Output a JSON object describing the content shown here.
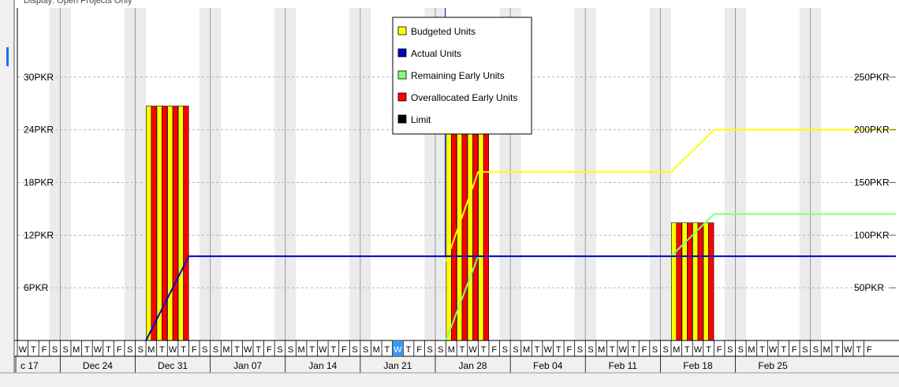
{
  "header": {
    "display_filter": "Display: Open Projects Only"
  },
  "chart_data": {
    "type": "bar",
    "left_axis": {
      "ticks": [
        "6PKR",
        "12PKR",
        "18PKR",
        "24PKR",
        "30PKR"
      ],
      "values": [
        6,
        12,
        18,
        24,
        30
      ],
      "ylim": [
        0,
        34.5
      ]
    },
    "right_axis": {
      "ticks": [
        "50PKR",
        "100PKR",
        "150PKR",
        "200PKR",
        "250PKR"
      ],
      "values": [
        50,
        100,
        150,
        200,
        250
      ],
      "ylim": [
        0,
        287.5
      ]
    },
    "week_labels": [
      "c 17",
      "Dec 24",
      "Dec 31",
      "Jan 07",
      "Jan 14",
      "Jan 21",
      "Jan 28",
      "Feb 04",
      "Feb 11",
      "Feb 18",
      "Feb 25"
    ],
    "day_letters": [
      "W",
      "T",
      "F",
      "S",
      "S",
      "M",
      "T",
      "W",
      "T",
      "F",
      "S",
      "S",
      "M",
      "T",
      "W",
      "T",
      "F",
      "S",
      "S",
      "M",
      "T",
      "W",
      "T",
      "F",
      "S",
      "S",
      "M",
      "T",
      "W",
      "T",
      "F",
      "S",
      "S",
      "M",
      "T",
      "W",
      "T",
      "F",
      "S",
      "S",
      "M",
      "T",
      "W",
      "T",
      "F",
      "S",
      "S",
      "M",
      "T",
      "W",
      "T",
      "F",
      "S",
      "S",
      "M",
      "T",
      "W",
      "T",
      "F",
      "S",
      "S",
      "M",
      "T",
      "W",
      "T",
      "F",
      "S",
      "S",
      "M",
      "T",
      "W",
      "T",
      "F",
      "S",
      "S",
      "M",
      "T",
      "W",
      "T",
      "F"
    ],
    "selected_day_index": 35,
    "legend": [
      {
        "label": "Budgeted Units",
        "color": "#ffff00"
      },
      {
        "label": "Actual Units",
        "color": "#0000cc"
      },
      {
        "label": "Remaining Early Units",
        "color": "#80ff80"
      },
      {
        "label": "Overallocated Early Units",
        "color": "#ff0000"
      },
      {
        "label": "Limit",
        "color": "#000000"
      }
    ],
    "bar_groups": [
      {
        "days": [
          12,
          13,
          14,
          15
        ],
        "value": 26.7
      },
      {
        "days": [
          40,
          41,
          42,
          43
        ],
        "value": 26.7
      },
      {
        "days": [
          61,
          62,
          63,
          64
        ],
        "value": 13.4
      }
    ],
    "series": [
      {
        "name": "Budgeted Units",
        "color": "#ffff00",
        "axis": "right",
        "points": [
          [
            40,
            75
          ],
          [
            43,
            160
          ],
          [
            61,
            160
          ],
          [
            65,
            200
          ],
          [
            80,
            200
          ]
        ]
      },
      {
        "name": "Remaining Early Units",
        "color": "#80ff80",
        "axis": "right",
        "points": [
          [
            40,
            0
          ],
          [
            43,
            80
          ],
          [
            61,
            80
          ],
          [
            65,
            120
          ],
          [
            80,
            120
          ]
        ]
      },
      {
        "name": "Actual Units",
        "color": "#0000cc",
        "axis": "right",
        "points": [
          [
            12,
            0
          ],
          [
            16,
            80
          ],
          [
            43,
            80
          ],
          [
            80,
            80
          ]
        ]
      }
    ],
    "blue_vertical_day": 40
  }
}
